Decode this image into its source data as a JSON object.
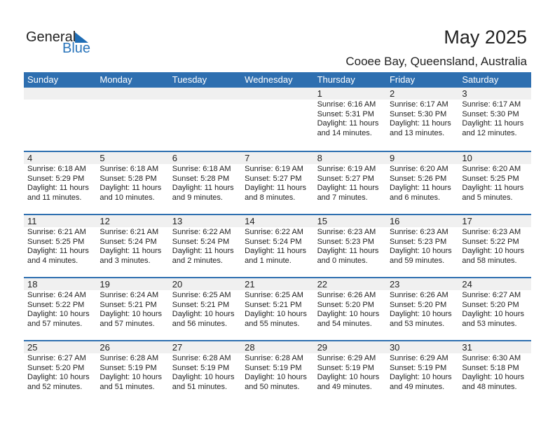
{
  "logo": {
    "general": "General",
    "blue": "Blue"
  },
  "title": "May 2025",
  "location": "Cooee Bay, Queensland, Australia",
  "weekdays": [
    "Sunday",
    "Monday",
    "Tuesday",
    "Wednesday",
    "Thursday",
    "Friday",
    "Saturday"
  ],
  "first_weekday_offset": 4,
  "days": [
    [
      "6:16 AM",
      "5:31 PM",
      "11 hours",
      "and 14 minutes."
    ],
    [
      "6:17 AM",
      "5:30 PM",
      "11 hours",
      "and 13 minutes."
    ],
    [
      "6:17 AM",
      "5:30 PM",
      "11 hours",
      "and 12 minutes."
    ],
    [
      "6:18 AM",
      "5:29 PM",
      "11 hours",
      "and 11 minutes."
    ],
    [
      "6:18 AM",
      "5:28 PM",
      "11 hours",
      "and 10 minutes."
    ],
    [
      "6:18 AM",
      "5:28 PM",
      "11 hours",
      "and 9 minutes."
    ],
    [
      "6:19 AM",
      "5:27 PM",
      "11 hours",
      "and 8 minutes."
    ],
    [
      "6:19 AM",
      "5:27 PM",
      "11 hours",
      "and 7 minutes."
    ],
    [
      "6:20 AM",
      "5:26 PM",
      "11 hours",
      "and 6 minutes."
    ],
    [
      "6:20 AM",
      "5:25 PM",
      "11 hours",
      "and 5 minutes."
    ],
    [
      "6:21 AM",
      "5:25 PM",
      "11 hours",
      "and 4 minutes."
    ],
    [
      "6:21 AM",
      "5:24 PM",
      "11 hours",
      "and 3 minutes."
    ],
    [
      "6:22 AM",
      "5:24 PM",
      "11 hours",
      "and 2 minutes."
    ],
    [
      "6:22 AM",
      "5:24 PM",
      "11 hours",
      "and 1 minute."
    ],
    [
      "6:23 AM",
      "5:23 PM",
      "11 hours",
      "and 0 minutes."
    ],
    [
      "6:23 AM",
      "5:23 PM",
      "10 hours",
      "and 59 minutes."
    ],
    [
      "6:23 AM",
      "5:22 PM",
      "10 hours",
      "and 58 minutes."
    ],
    [
      "6:24 AM",
      "5:22 PM",
      "10 hours",
      "and 57 minutes."
    ],
    [
      "6:24 AM",
      "5:21 PM",
      "10 hours",
      "and 57 minutes."
    ],
    [
      "6:25 AM",
      "5:21 PM",
      "10 hours",
      "and 56 minutes."
    ],
    [
      "6:25 AM",
      "5:21 PM",
      "10 hours",
      "and 55 minutes."
    ],
    [
      "6:26 AM",
      "5:20 PM",
      "10 hours",
      "and 54 minutes."
    ],
    [
      "6:26 AM",
      "5:20 PM",
      "10 hours",
      "and 53 minutes."
    ],
    [
      "6:27 AM",
      "5:20 PM",
      "10 hours",
      "and 53 minutes."
    ],
    [
      "6:27 AM",
      "5:20 PM",
      "10 hours",
      "and 52 minutes."
    ],
    [
      "6:28 AM",
      "5:19 PM",
      "10 hours",
      "and 51 minutes."
    ],
    [
      "6:28 AM",
      "5:19 PM",
      "10 hours",
      "and 51 minutes."
    ],
    [
      "6:28 AM",
      "5:19 PM",
      "10 hours",
      "and 50 minutes."
    ],
    [
      "6:29 AM",
      "5:19 PM",
      "10 hours",
      "and 49 minutes."
    ],
    [
      "6:29 AM",
      "5:19 PM",
      "10 hours",
      "and 49 minutes."
    ],
    [
      "6:30 AM",
      "5:18 PM",
      "10 hours",
      "and 48 minutes."
    ]
  ],
  "labels": {
    "sunrise": "Sunrise: ",
    "sunset": "Sunset: ",
    "daylight": "Daylight: "
  }
}
